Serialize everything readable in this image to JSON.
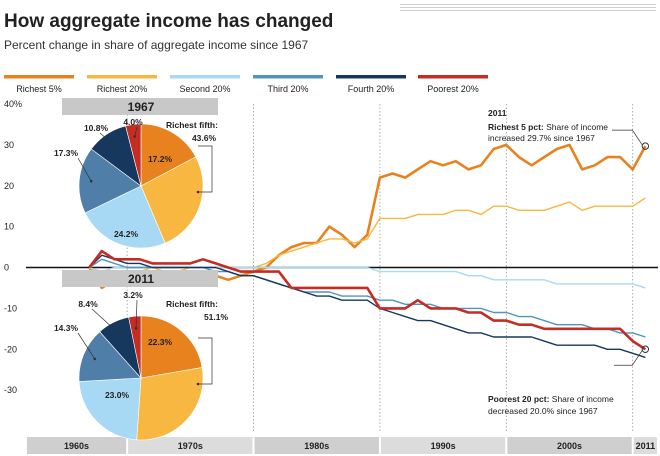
{
  "header": {
    "title": "How aggregate income has changed",
    "subtitle": "Percent change in share of aggregate income since 1967"
  },
  "chart_data": [
    {
      "type": "line",
      "title": "How aggregate income has changed",
      "subtitle": "Percent change in share of aggregate income since 1967",
      "ylim": [
        -40,
        40
      ],
      "yticks": [
        40,
        30,
        20,
        10,
        0,
        -10,
        -20,
        -30
      ],
      "ytick_labels": [
        "40%",
        "30",
        "20",
        "10",
        "0",
        "-10",
        "-20",
        "-30"
      ],
      "xlim": [
        1962,
        2012
      ],
      "x_bands": [
        {
          "label": "1960s",
          "from": 1962,
          "to": 1970
        },
        {
          "label": "1970s",
          "from": 1970,
          "to": 1980
        },
        {
          "label": "1980s",
          "from": 1980,
          "to": 1990
        },
        {
          "label": "1990s",
          "from": 1990,
          "to": 2000
        },
        {
          "label": "2000s",
          "from": 2000,
          "to": 2010
        },
        {
          "label": "2011",
          "from": 2010,
          "to": 2012
        }
      ],
      "grid": "vertical dotted at decade boundaries",
      "legend_position": "top",
      "x": [
        1967,
        1968,
        1969,
        1970,
        1971,
        1972,
        1973,
        1974,
        1975,
        1976,
        1977,
        1978,
        1979,
        1980,
        1981,
        1982,
        1983,
        1984,
        1985,
        1986,
        1987,
        1988,
        1989,
        1990,
        1991,
        1992,
        1993,
        1994,
        1995,
        1996,
        1997,
        1998,
        1999,
        2000,
        2001,
        2002,
        2003,
        2004,
        2005,
        2006,
        2007,
        2008,
        2009,
        2010,
        2011
      ],
      "series": [
        {
          "name": "Richest 5%",
          "color": "#e8821e",
          "width": 2.6,
          "values": [
            0,
            -5,
            -3,
            -3,
            -3,
            -2,
            -3,
            -3,
            -3,
            -2,
            -2,
            -3,
            -2,
            -1,
            0,
            3,
            5,
            6,
            6,
            10,
            8,
            5,
            8,
            22,
            23,
            22,
            24,
            26,
            25,
            26,
            24,
            25,
            29,
            30,
            27,
            25,
            27,
            29,
            30,
            24,
            25,
            27,
            27,
            24,
            29.7
          ]
        },
        {
          "name": "Richest 20%",
          "color": "#f8b740",
          "width": 1.4,
          "values": [
            0,
            -2,
            -1,
            -1,
            -1,
            0,
            -1,
            -1,
            0,
            0,
            0,
            0,
            0,
            0,
            1,
            3,
            4,
            5,
            6,
            7,
            7,
            6,
            7,
            12,
            12,
            12,
            13,
            13,
            13,
            14,
            14,
            13,
            15,
            15,
            14,
            14,
            14,
            15,
            16,
            14,
            15,
            15,
            15,
            15,
            17
          ]
        },
        {
          "name": "Second 20%",
          "color": "#a8d9f4",
          "width": 1.4,
          "values": [
            0,
            -1,
            0,
            0,
            0,
            0,
            0,
            0,
            0,
            0,
            0,
            0,
            0,
            0,
            0,
            0,
            0,
            0,
            0,
            0,
            0,
            0,
            0,
            -1,
            -1,
            -1,
            -1,
            -1,
            -1,
            -1,
            -2,
            -2,
            -3,
            -3,
            -3,
            -3,
            -3,
            -4,
            -4,
            -4,
            -4,
            -4,
            -4,
            -4,
            -5
          ]
        },
        {
          "name": "Third 20%",
          "color": "#4f96be",
          "width": 1.4,
          "values": [
            0,
            2,
            1,
            0,
            0,
            0,
            0,
            0,
            0,
            0,
            -1,
            -1,
            -2,
            -2,
            -3,
            -4,
            -5,
            -6,
            -6,
            -6,
            -7,
            -7,
            -7,
            -8,
            -8,
            -9,
            -9,
            -9,
            -10,
            -10,
            -10,
            -10,
            -11,
            -11,
            -12,
            -12,
            -13,
            -14,
            -14,
            -14,
            -15,
            -15,
            -16,
            -16,
            -17
          ]
        },
        {
          "name": "Fourth 20%",
          "color": "#16385f",
          "width": 1.4,
          "values": [
            0,
            3,
            2,
            1,
            1,
            0,
            0,
            0,
            0,
            0,
            0,
            -1,
            -2,
            -2,
            -3,
            -4,
            -5,
            -6,
            -7,
            -7,
            -8,
            -8,
            -8,
            -10,
            -11,
            -12,
            -13,
            -13,
            -14,
            -15,
            -16,
            -16,
            -17,
            -17,
            -17,
            -17,
            -18,
            -19,
            -19,
            -19,
            -19,
            -20,
            -20,
            -21,
            -22
          ]
        },
        {
          "name": "Poorest 20%",
          "color": "#c52c24",
          "width": 2.6,
          "values": [
            0,
            4,
            2,
            2,
            2,
            1,
            1,
            1,
            1,
            2,
            1,
            0,
            -1,
            -1,
            -1,
            -1,
            -5,
            -5,
            -5,
            -5,
            -5,
            -5,
            -5,
            -10,
            -10,
            -10,
            -8,
            -10,
            -10,
            -10,
            -11,
            -11,
            -13,
            -13,
            -14,
            -14,
            -15,
            -15,
            -15,
            -15,
            -15,
            -15,
            -15,
            -18,
            -20
          ]
        }
      ],
      "annotations": [
        {
          "year_label": "2011",
          "bold": "Richest 5 pct:",
          "text": [
            "Share of income",
            "increased 29.7% since 1967"
          ],
          "x": 2011,
          "y": 29.7
        },
        {
          "bold": "Poorest 20 pct:",
          "text": [
            "Share of income",
            "decreased 20.0% since 1967"
          ],
          "x": 2011,
          "y": -20
        }
      ]
    },
    {
      "type": "pie",
      "title": "1967",
      "highlight_label": "Richest fifth:",
      "highlight_value": "43.6%",
      "slices": [
        {
          "name": "Richest 5%",
          "value": 17.2,
          "label": "17.2%",
          "color": "#e8821e"
        },
        {
          "name": "Rest of richest 20%",
          "value": 26.4,
          "label": "",
          "color": "#f8b740"
        },
        {
          "name": "Second 20%",
          "value": 24.2,
          "label": "24.2%",
          "color": "#a8d9f4"
        },
        {
          "name": "Third 20%",
          "value": 17.3,
          "label": "17.3%",
          "color": "#4f7fa8"
        },
        {
          "name": "Fourth 20%",
          "value": 10.8,
          "label": "10.8%",
          "color": "#16385f"
        },
        {
          "name": "Poorest 20%",
          "value": 4.0,
          "label": "4.0%",
          "color": "#c52c24"
        }
      ]
    },
    {
      "type": "pie",
      "title": "2011",
      "highlight_label": "Richest fifth:",
      "highlight_value": "51.1%",
      "slices": [
        {
          "name": "Richest 5%",
          "value": 22.3,
          "label": "22.3%",
          "color": "#e8821e"
        },
        {
          "name": "Rest of richest 20%",
          "value": 28.8,
          "label": "",
          "color": "#f8b740"
        },
        {
          "name": "Second 20%",
          "value": 23.0,
          "label": "23.0%",
          "color": "#a8d9f4"
        },
        {
          "name": "Third 20%",
          "value": 14.3,
          "label": "14.3%",
          "color": "#4f7fa8"
        },
        {
          "name": "Fourth 20%",
          "value": 8.4,
          "label": "8.4%",
          "color": "#16385f"
        },
        {
          "name": "Poorest 20%",
          "value": 3.2,
          "label": "3.2%",
          "color": "#c52c24"
        }
      ]
    }
  ]
}
